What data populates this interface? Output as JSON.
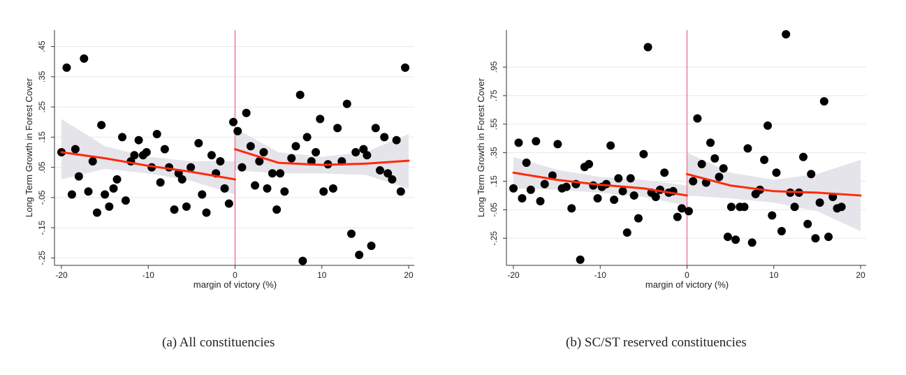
{
  "chart_data": [
    {
      "type": "scatter",
      "xlabel": "margin of victory (%)",
      "ylabel": "Long Term Growth in Forest Cover",
      "xlim": [
        -20,
        20
      ],
      "ylim": [
        -0.27,
        0.5
      ],
      "x_ticks": [
        -20,
        -10,
        0,
        10,
        20
      ],
      "x_tick_labels": [
        "-20",
        "-10",
        "0",
        "10",
        "20"
      ],
      "y_ticks": [
        -0.25,
        -0.15,
        -0.05,
        0.05,
        0.15,
        0.25,
        0.35,
        0.45
      ],
      "y_tick_labels": [
        "-.25",
        "-.15",
        "-.05",
        ".05",
        ".15",
        ".25",
        ".35",
        ".45"
      ],
      "cutoff": 0,
      "grid": "horizontal",
      "points": [
        [
          -20,
          0.1
        ],
        [
          -19.4,
          0.38
        ],
        [
          -18.8,
          -0.04
        ],
        [
          -18.4,
          0.11
        ],
        [
          -18,
          0.02
        ],
        [
          -17.4,
          0.41
        ],
        [
          -16.9,
          -0.03
        ],
        [
          -16.4,
          0.07
        ],
        [
          -15.9,
          -0.1
        ],
        [
          -15.4,
          0.19
        ],
        [
          -15,
          -0.04
        ],
        [
          -14.5,
          -0.08
        ],
        [
          -14,
          -0.02
        ],
        [
          -13.6,
          0.01
        ],
        [
          -13,
          0.15
        ],
        [
          -12.6,
          -0.06
        ],
        [
          -12,
          0.07
        ],
        [
          -11.6,
          0.09
        ],
        [
          -11.1,
          0.14
        ],
        [
          -10.6,
          0.09
        ],
        [
          -10.2,
          0.1
        ],
        [
          -9.6,
          0.05
        ],
        [
          -9,
          0.16
        ],
        [
          -8.6,
          0.0
        ],
        [
          -8.1,
          0.11
        ],
        [
          -7.6,
          0.05
        ],
        [
          -7,
          -0.09
        ],
        [
          -6.5,
          0.03
        ],
        [
          -6.1,
          0.01
        ],
        [
          -5.6,
          -0.08
        ],
        [
          -5.1,
          0.05
        ],
        [
          -4.2,
          0.13
        ],
        [
          -3.8,
          -0.04
        ],
        [
          -3.3,
          -0.1
        ],
        [
          -2.7,
          0.09
        ],
        [
          -2.2,
          0.03
        ],
        [
          -1.7,
          0.07
        ],
        [
          -1.2,
          -0.02
        ],
        [
          -0.7,
          -0.07
        ],
        [
          -0.2,
          0.2
        ],
        [
          0.3,
          0.17
        ],
        [
          0.8,
          0.05
        ],
        [
          1.3,
          0.23
        ],
        [
          1.8,
          0.12
        ],
        [
          2.3,
          -0.01
        ],
        [
          2.8,
          0.07
        ],
        [
          3.3,
          0.1
        ],
        [
          3.7,
          -0.02
        ],
        [
          4.3,
          0.03
        ],
        [
          4.8,
          -0.09
        ],
        [
          5.2,
          0.03
        ],
        [
          5.7,
          -0.03
        ],
        [
          6.5,
          0.08
        ],
        [
          7.0,
          0.12
        ],
        [
          7.5,
          0.29
        ],
        [
          7.8,
          -0.26
        ],
        [
          8.3,
          0.15
        ],
        [
          8.8,
          0.07
        ],
        [
          9.3,
          0.1
        ],
        [
          9.8,
          0.21
        ],
        [
          10.2,
          -0.03
        ],
        [
          10.7,
          0.06
        ],
        [
          11.3,
          -0.02
        ],
        [
          11.8,
          0.18
        ],
        [
          12.3,
          0.07
        ],
        [
          12.9,
          0.26
        ],
        [
          13.4,
          -0.17
        ],
        [
          13.9,
          0.1
        ],
        [
          14.3,
          -0.24
        ],
        [
          14.8,
          0.11
        ],
        [
          15.2,
          0.09
        ],
        [
          15.7,
          -0.21
        ],
        [
          16.2,
          0.18
        ],
        [
          16.7,
          0.04
        ],
        [
          17.2,
          0.15
        ],
        [
          17.6,
          0.03
        ],
        [
          18.1,
          0.01
        ],
        [
          18.6,
          0.14
        ],
        [
          19.1,
          -0.03
        ],
        [
          19.6,
          0.38
        ]
      ],
      "fit_left": [
        [
          -20,
          0.1
        ],
        [
          -15,
          0.08
        ],
        [
          -10,
          0.055
        ],
        [
          -5,
          0.035
        ],
        [
          0,
          0.01
        ]
      ],
      "fit_right": [
        [
          0,
          0.11
        ],
        [
          5,
          0.065
        ],
        [
          10,
          0.058
        ],
        [
          15,
          0.062
        ],
        [
          20,
          0.072
        ]
      ],
      "ci_left": [
        [
          -20,
          0.01,
          0.21
        ],
        [
          -15,
          0.045,
          0.12
        ],
        [
          -10,
          0.03,
          0.085
        ],
        [
          -5,
          0.005,
          0.07
        ],
        [
          0,
          -0.04,
          0.07
        ]
      ],
      "ci_right": [
        [
          0,
          0.04,
          0.18
        ],
        [
          5,
          0.03,
          0.1
        ],
        [
          10,
          0.03,
          0.085
        ],
        [
          15,
          0.025,
          0.1
        ],
        [
          20,
          -0.02,
          0.16
        ]
      ],
      "colors": {
        "points": "#000000",
        "fit": "#ff2a0a",
        "ci": "#e4e4ea",
        "cutoff": "#f07a9a",
        "grid": "#e8e8e8"
      }
    },
    {
      "type": "scatter",
      "xlabel": "margin of victory (%)",
      "ylabel": "Long Term Growth in Forest Cover",
      "xlim": [
        -20,
        20
      ],
      "ylim": [
        -0.43,
        1.2
      ],
      "x_ticks": [
        -20,
        -10,
        0,
        10,
        20
      ],
      "x_tick_labels": [
        "-20",
        "-10",
        "0",
        "10",
        "20"
      ],
      "y_ticks": [
        -0.25,
        -0.05,
        0.15,
        0.35,
        0.55,
        0.75,
        0.95
      ],
      "y_tick_labels": [
        "-.25",
        "-.05",
        ".15",
        ".35",
        ".55",
        ".75",
        ".95"
      ],
      "cutoff": 0,
      "grid": "horizontal",
      "points": [
        [
          -20,
          0.1
        ],
        [
          -19.4,
          0.42
        ],
        [
          -19,
          0.03
        ],
        [
          -18.5,
          0.28
        ],
        [
          -18,
          0.09
        ],
        [
          -17.4,
          0.43
        ],
        [
          -16.9,
          0.01
        ],
        [
          -16.4,
          0.13
        ],
        [
          -15.5,
          0.19
        ],
        [
          -14.9,
          0.41
        ],
        [
          -14.4,
          0.1
        ],
        [
          -13.9,
          0.11
        ],
        [
          -13.3,
          -0.04
        ],
        [
          -12.8,
          0.13
        ],
        [
          -12.3,
          -0.4
        ],
        [
          -11.8,
          0.25
        ],
        [
          -11.3,
          0.27
        ],
        [
          -10.8,
          0.12
        ],
        [
          -10.3,
          0.03
        ],
        [
          -9.8,
          0.11
        ],
        [
          -9.3,
          0.13
        ],
        [
          -8.8,
          0.4
        ],
        [
          -8.4,
          0.02
        ],
        [
          -7.9,
          0.17
        ],
        [
          -7.4,
          0.08
        ],
        [
          -6.9,
          -0.21
        ],
        [
          -6.5,
          0.17
        ],
        [
          -6.1,
          0.05
        ],
        [
          -5.6,
          -0.11
        ],
        [
          -5,
          0.34
        ],
        [
          -4.5,
          1.09
        ],
        [
          -4.1,
          0.07
        ],
        [
          -3.6,
          0.04
        ],
        [
          -3.1,
          0.09
        ],
        [
          -2.6,
          0.21
        ],
        [
          -2.1,
          0.07
        ],
        [
          -1.6,
          0.08
        ],
        [
          -1.1,
          -0.1
        ],
        [
          -0.6,
          -0.04
        ],
        [
          0.2,
          -0.06
        ],
        [
          0.7,
          0.15
        ],
        [
          1.2,
          0.59
        ],
        [
          1.7,
          0.27
        ],
        [
          2.2,
          0.14
        ],
        [
          2.7,
          0.42
        ],
        [
          3.2,
          0.31
        ],
        [
          3.7,
          0.18
        ],
        [
          4.2,
          0.24
        ],
        [
          4.7,
          -0.24
        ],
        [
          5.1,
          -0.03
        ],
        [
          5.6,
          -0.26
        ],
        [
          6.1,
          -0.03
        ],
        [
          6.6,
          -0.03
        ],
        [
          7.0,
          0.38
        ],
        [
          7.5,
          -0.28
        ],
        [
          7.9,
          0.06
        ],
        [
          8.4,
          0.09
        ],
        [
          8.9,
          0.3
        ],
        [
          9.3,
          0.54
        ],
        [
          9.8,
          -0.09
        ],
        [
          10.3,
          0.21
        ],
        [
          10.9,
          -0.2
        ],
        [
          11.4,
          1.18
        ],
        [
          11.9,
          0.07
        ],
        [
          12.4,
          -0.03
        ],
        [
          12.9,
          0.07
        ],
        [
          13.4,
          0.32
        ],
        [
          13.9,
          -0.15
        ],
        [
          14.3,
          0.2
        ],
        [
          14.8,
          -0.25
        ],
        [
          15.3,
          0.0
        ],
        [
          15.8,
          0.71
        ],
        [
          16.3,
          -0.24
        ],
        [
          16.8,
          0.04
        ],
        [
          17.3,
          -0.04
        ],
        [
          17.8,
          -0.03
        ]
      ],
      "fit_left": [
        [
          -20,
          0.21
        ],
        [
          -15,
          0.16
        ],
        [
          -10,
          0.125
        ],
        [
          -5,
          0.1
        ],
        [
          0,
          0.05
        ]
      ],
      "fit_right": [
        [
          0,
          0.2
        ],
        [
          5,
          0.12
        ],
        [
          10,
          0.08
        ],
        [
          15,
          0.07
        ],
        [
          20,
          0.05
        ]
      ],
      "ci_left": [
        [
          -20,
          0.1,
          0.32
        ],
        [
          -15,
          0.09,
          0.23
        ],
        [
          -10,
          0.07,
          0.18
        ],
        [
          -5,
          0.04,
          0.16
        ],
        [
          0,
          -0.02,
          0.12
        ]
      ],
      "ci_right": [
        [
          0,
          0.05,
          0.35
        ],
        [
          5,
          0.03,
          0.21
        ],
        [
          10,
          0.0,
          0.16
        ],
        [
          15,
          -0.06,
          0.2
        ],
        [
          20,
          -0.2,
          0.3
        ]
      ],
      "colors": {
        "points": "#000000",
        "fit": "#ff2a0a",
        "ci": "#e4e4ea",
        "cutoff": "#f07a9a",
        "grid": "#e8e8e8"
      }
    }
  ],
  "captions": {
    "a": "(a)  All constituencies",
    "b": "(b) SC/ST reserved constituencies"
  }
}
